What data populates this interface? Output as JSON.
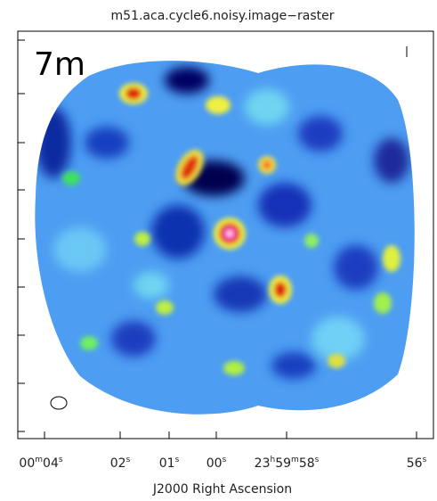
{
  "header": {
    "title": "m51.aca.cycle6.noisy.image−raster"
  },
  "image": {
    "label": "7m"
  },
  "x_axis": {
    "label": "J2000 Right Ascension",
    "ticks": [
      [
        "00",
        "m",
        "04",
        "s"
      ],
      [
        "02",
        "s"
      ],
      [
        "01",
        "s"
      ],
      [
        "00",
        "s"
      ],
      [
        "23",
        "h",
        "59",
        "m",
        "58",
        "s"
      ],
      [
        "56",
        "s"
      ]
    ]
  }
}
